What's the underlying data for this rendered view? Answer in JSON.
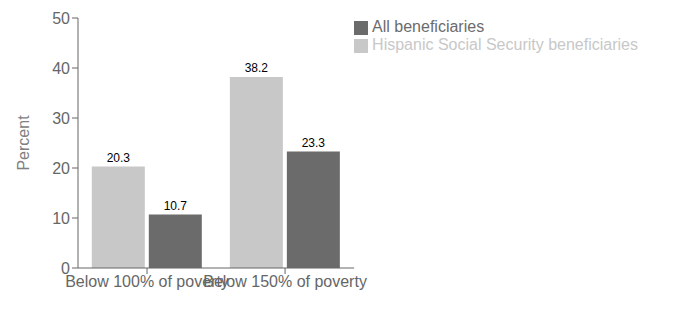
{
  "chart_data": {
    "type": "bar",
    "categories": [
      "Below 100% of poverty",
      "Below 150% of poverty"
    ],
    "series": [
      {
        "name": "Hispanic Social Security beneficiaries",
        "color": "#c8c8c8",
        "values": [
          20.3,
          38.2
        ]
      },
      {
        "name": "All beneficiaries",
        "color": "#6b6b6b",
        "values": [
          10.7,
          23.3
        ]
      }
    ],
    "ylabel": "Percent",
    "ylim": [
      0,
      50
    ],
    "yticks": [
      0,
      10,
      20,
      30,
      40,
      50
    ],
    "grid": false,
    "legend": "upper right",
    "data_labels": true
  }
}
